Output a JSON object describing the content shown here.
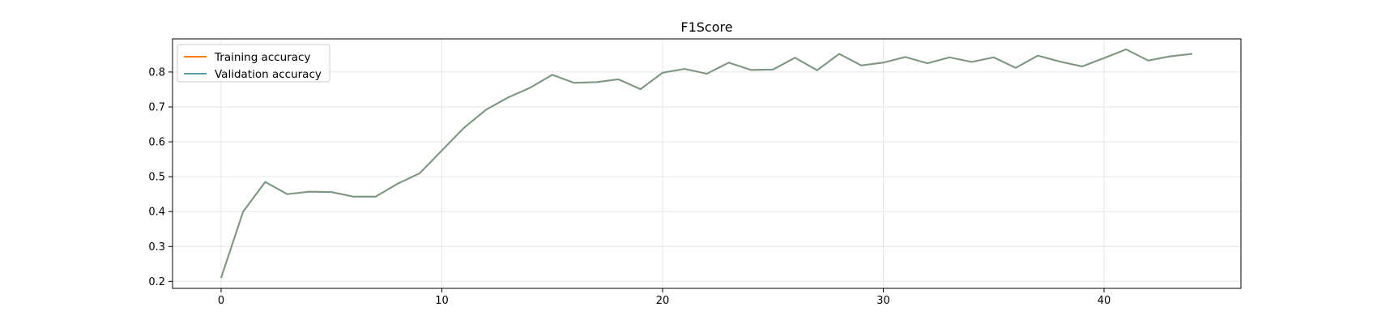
{
  "chart_data": {
    "type": "line",
    "title": "F1Score",
    "xlabel": "",
    "ylabel": "",
    "xlim": [
      -2.2,
      46.2
    ],
    "ylim": [
      0.18,
      0.895
    ],
    "xticks": [
      0,
      10,
      20,
      30,
      40
    ],
    "yticks": [
      0.2,
      0.3,
      0.4,
      0.5,
      0.6,
      0.7,
      0.8
    ],
    "grid": true,
    "legend_position": "top-left",
    "x": [
      0,
      1,
      2,
      3,
      4,
      5,
      6,
      7,
      8,
      9,
      10,
      11,
      12,
      13,
      14,
      15,
      16,
      17,
      18,
      19,
      20,
      21,
      22,
      23,
      24,
      25,
      26,
      27,
      28,
      29,
      30,
      31,
      32,
      33,
      34,
      35,
      36,
      37,
      38,
      39,
      40,
      41,
      42,
      43,
      44
    ],
    "series": [
      {
        "name": "Training accuracy",
        "color": "#ff7f0e",
        "values": [
          0.21,
          0.4,
          0.485,
          0.45,
          0.457,
          0.456,
          0.443,
          0.443,
          0.48,
          0.51,
          0.575,
          0.64,
          0.692,
          0.727,
          0.755,
          0.792,
          0.769,
          0.771,
          0.779,
          0.751,
          0.798,
          0.809,
          0.795,
          0.827,
          0.806,
          0.807,
          0.841,
          0.805,
          0.852,
          0.819,
          0.827,
          0.843,
          0.825,
          0.842,
          0.829,
          0.842,
          0.812,
          0.847,
          0.83,
          0.816,
          0.84,
          0.865,
          0.833,
          0.845,
          0.852
        ]
      },
      {
        "name": "Validation accuracy",
        "color": "#5f9ea0",
        "values": [
          0.21,
          0.4,
          0.485,
          0.45,
          0.457,
          0.456,
          0.443,
          0.443,
          0.48,
          0.51,
          0.575,
          0.64,
          0.692,
          0.727,
          0.755,
          0.792,
          0.769,
          0.771,
          0.779,
          0.751,
          0.798,
          0.809,
          0.795,
          0.827,
          0.806,
          0.807,
          0.841,
          0.805,
          0.852,
          0.819,
          0.827,
          0.843,
          0.825,
          0.842,
          0.829,
          0.842,
          0.812,
          0.847,
          0.83,
          0.816,
          0.84,
          0.865,
          0.833,
          0.845,
          0.852
        ]
      }
    ]
  }
}
